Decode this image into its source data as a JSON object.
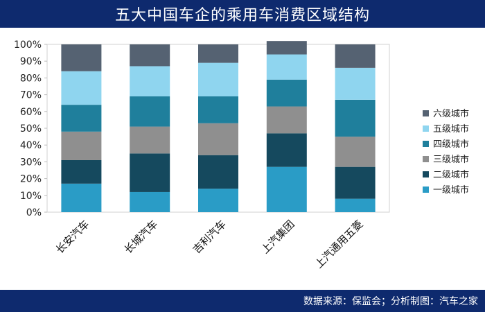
{
  "header": {
    "title": "五大中国车企的乘用车消费区域结构"
  },
  "footer": {
    "source": "数据来源：保监会；分析制图：汽车之家"
  },
  "chart_data": {
    "type": "bar",
    "stacked": true,
    "title": "五大中国车企的乘用车消费区域结构",
    "categories": [
      "长安汽车",
      "长城汽车",
      "吉利汽车",
      "上汽集团",
      "上汽通用五菱"
    ],
    "ylim": [
      0,
      100
    ],
    "yticks": [
      "0%",
      "10%",
      "20%",
      "30%",
      "40%",
      "50%",
      "60%",
      "70%",
      "80%",
      "90%",
      "100%"
    ],
    "legend_position": "right",
    "series": [
      {
        "name": "一级城市",
        "color": "#2a9cc6",
        "values": [
          17,
          12,
          14,
          27,
          8
        ]
      },
      {
        "name": "二级城市",
        "color": "#15495e",
        "values": [
          14,
          23,
          20,
          20,
          19
        ]
      },
      {
        "name": "三级城市",
        "color": "#8f8f8f",
        "values": [
          17,
          16,
          19,
          16,
          18
        ]
      },
      {
        "name": "四级城市",
        "color": "#1f7f9c",
        "values": [
          16,
          18,
          16,
          16,
          22
        ]
      },
      {
        "name": "五级城市",
        "color": "#8fd5ef",
        "values": [
          20,
          18,
          20,
          15,
          19
        ]
      },
      {
        "name": "六级城市",
        "color": "#556272",
        "values": [
          16,
          13,
          11,
          8,
          14
        ]
      }
    ]
  }
}
